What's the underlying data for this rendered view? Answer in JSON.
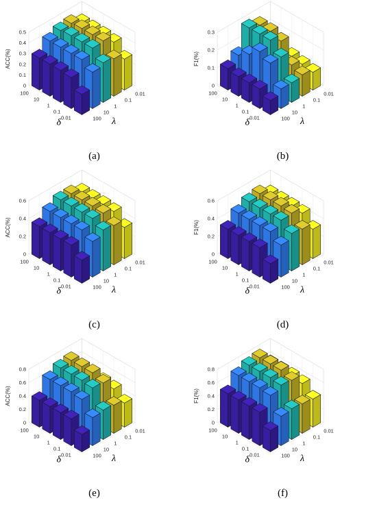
{
  "chart_data": [
    {
      "type": "bar3d",
      "panel": "(a)",
      "zlabel": "ACC(%)",
      "delta_label": "δ",
      "lambda_label": "λ",
      "delta_ticks": [
        "100",
        "10",
        "1",
        "0.1",
        "0.01"
      ],
      "lambda_ticks": [
        "100",
        "10",
        "1",
        "0.1",
        "0.01"
      ],
      "zlim": [
        0,
        0.5
      ],
      "zticks": [
        "0",
        "0.1",
        "0.2",
        "0.3",
        "0.4",
        "0.5"
      ],
      "lambda_colors": [
        "#3a1fa8",
        "#2f7cf0",
        "#1fb7b0",
        "#c8b626",
        "#f2ee1e"
      ],
      "values": [
        [
          0.3,
          0.4,
          0.44,
          0.45,
          0.4
        ],
        [
          0.3,
          0.4,
          0.45,
          0.46,
          0.4
        ],
        [
          0.3,
          0.4,
          0.45,
          0.46,
          0.4
        ],
        [
          0.29,
          0.4,
          0.45,
          0.46,
          0.39
        ],
        [
          0.19,
          0.34,
          0.37,
          0.35,
          0.29
        ]
      ]
    },
    {
      "type": "bar3d",
      "panel": "(b)",
      "zlabel": "F1(%)",
      "delta_label": "δ",
      "lambda_label": "λ",
      "delta_ticks": [
        "100",
        "10",
        "1",
        "0.1",
        "0.01"
      ],
      "lambda_ticks": [
        "100",
        "10",
        "1",
        "0.1",
        "0.01"
      ],
      "zlim": [
        0,
        0.3
      ],
      "zticks": [
        "0",
        "0.1",
        "0.2",
        "0.3"
      ],
      "lambda_colors": [
        "#3a1fa8",
        "#2f7cf0",
        "#1fb7b0",
        "#c8b626",
        "#f2ee1e"
      ],
      "values": [
        [
          0.12,
          0.16,
          0.28,
          0.26,
          0.12
        ],
        [
          0.11,
          0.2,
          0.28,
          0.26,
          0.12
        ],
        [
          0.11,
          0.25,
          0.28,
          0.24,
          0.12
        ],
        [
          0.11,
          0.22,
          0.22,
          0.14,
          0.11
        ],
        [
          0.08,
          0.11,
          0.11,
          0.12,
          0.1
        ]
      ]
    },
    {
      "type": "bar3d",
      "panel": "(c)",
      "zlabel": "ACC(%)",
      "delta_label": "δ",
      "lambda_label": "λ",
      "delta_ticks": [
        "100",
        "10",
        "1",
        "0.1",
        "0.01"
      ],
      "lambda_ticks": [
        "100",
        "10",
        "1",
        "0.1",
        "0.01"
      ],
      "zlim": [
        0,
        0.6
      ],
      "zticks": [
        "0",
        "0.2",
        "0.4",
        "0.6"
      ],
      "lambda_colors": [
        "#3a1fa8",
        "#2f7cf0",
        "#1fb7b0",
        "#c8b626",
        "#f2ee1e"
      ],
      "values": [
        [
          0.36,
          0.46,
          0.52,
          0.52,
          0.47
        ],
        [
          0.36,
          0.46,
          0.52,
          0.52,
          0.47
        ],
        [
          0.36,
          0.46,
          0.52,
          0.52,
          0.47
        ],
        [
          0.36,
          0.46,
          0.52,
          0.51,
          0.46
        ],
        [
          0.26,
          0.4,
          0.46,
          0.44,
          0.35
        ]
      ]
    },
    {
      "type": "bar3d",
      "panel": "(d)",
      "zlabel": "F1(%)",
      "delta_label": "δ",
      "lambda_label": "λ",
      "delta_ticks": [
        "100",
        "10",
        "1",
        "0.1",
        "0.01"
      ],
      "lambda_ticks": [
        "100",
        "10",
        "1",
        "0.1",
        "0.01"
      ],
      "zlim": [
        0,
        0.6
      ],
      "zticks": [
        "0",
        "0.2",
        "0.4",
        "0.6"
      ],
      "lambda_colors": [
        "#3a1fa8",
        "#2f7cf0",
        "#1fb7b0",
        "#c8b626",
        "#f2ee1e"
      ],
      "values": [
        [
          0.33,
          0.44,
          0.5,
          0.52,
          0.45
        ],
        [
          0.33,
          0.44,
          0.5,
          0.52,
          0.45
        ],
        [
          0.33,
          0.44,
          0.5,
          0.52,
          0.45
        ],
        [
          0.33,
          0.44,
          0.5,
          0.51,
          0.44
        ],
        [
          0.22,
          0.36,
          0.42,
          0.4,
          0.33
        ]
      ]
    },
    {
      "type": "bar3d",
      "panel": "(e)",
      "zlabel": "ACC(%)",
      "delta_label": "δ",
      "lambda_label": "λ",
      "delta_ticks": [
        "100",
        "10",
        "1",
        "0.1",
        "0.01"
      ],
      "lambda_ticks": [
        "100",
        "10",
        "1",
        "0.1",
        "0.01"
      ],
      "zlim": [
        0,
        0.8
      ],
      "zticks": [
        "0",
        "0.2",
        "0.4",
        "0.6",
        "0.8"
      ],
      "lambda_colors": [
        "#3a1fa8",
        "#2f7cf0",
        "#1fb7b0",
        "#c8b626",
        "#f2ee1e"
      ],
      "values": [
        [
          0.4,
          0.62,
          0.7,
          0.72,
          0.5
        ],
        [
          0.4,
          0.62,
          0.7,
          0.72,
          0.5
        ],
        [
          0.4,
          0.62,
          0.7,
          0.72,
          0.5
        ],
        [
          0.4,
          0.6,
          0.68,
          0.66,
          0.48
        ],
        [
          0.26,
          0.42,
          0.44,
          0.42,
          0.36
        ]
      ]
    },
    {
      "type": "bar3d",
      "panel": "(f)",
      "zlabel": "F1(%)",
      "delta_label": "δ",
      "lambda_label": "λ",
      "delta_ticks": [
        "100",
        "10",
        "1",
        "0.1",
        "0.01"
      ],
      "lambda_ticks": [
        "100",
        "10",
        "1",
        "0.1",
        "0.01"
      ],
      "zlim": [
        0,
        0.8
      ],
      "zticks": [
        "0",
        "0.2",
        "0.4",
        "0.6",
        "0.8"
      ],
      "lambda_colors": [
        "#3a1fa8",
        "#2f7cf0",
        "#1fb7b0",
        "#c8b626",
        "#f2ee1e"
      ],
      "values": [
        [
          0.5,
          0.68,
          0.74,
          0.76,
          0.58
        ],
        [
          0.5,
          0.68,
          0.74,
          0.76,
          0.58
        ],
        [
          0.5,
          0.68,
          0.74,
          0.76,
          0.58
        ],
        [
          0.5,
          0.66,
          0.72,
          0.7,
          0.56
        ],
        [
          0.32,
          0.44,
          0.46,
          0.44,
          0.42
        ]
      ]
    }
  ]
}
